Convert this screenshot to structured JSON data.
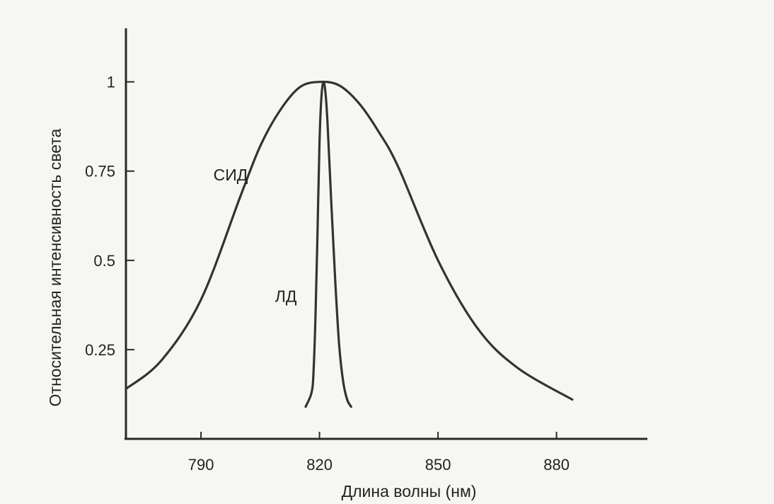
{
  "chart_data": {
    "type": "line",
    "title": "",
    "xlabel": "Длина волны (нм)",
    "ylabel": "Относительная интенсивность света",
    "xlim": [
      771,
      903
    ],
    "ylim": [
      0,
      1.15
    ],
    "x_ticks": [
      790,
      820,
      850,
      880
    ],
    "x_tick_labels": [
      "790",
      "820",
      "850",
      "880"
    ],
    "y_ticks": [
      0.25,
      0.5,
      0.75,
      1
    ],
    "y_tick_labels": [
      "0.25",
      "0.5",
      "0.75",
      "1"
    ],
    "grid": false,
    "legend": "none",
    "series": [
      {
        "name": "СИД",
        "color": "#333333",
        "x": [
          771,
          780,
          790,
          800,
          805,
          810,
          815,
          820,
          825,
          830,
          835,
          840,
          850,
          860,
          870,
          884
        ],
        "y": [
          0.14,
          0.22,
          0.39,
          0.68,
          0.82,
          0.92,
          0.985,
          1.0,
          0.99,
          0.94,
          0.86,
          0.76,
          0.5,
          0.31,
          0.2,
          0.11
        ]
      },
      {
        "name": "ЛД",
        "color": "#333333",
        "x": [
          816.5,
          818,
          818.5,
          819,
          819.5,
          820,
          820.5,
          821,
          821.5,
          822,
          823,
          824,
          825,
          826,
          827,
          828
        ],
        "y": [
          0.09,
          0.13,
          0.19,
          0.35,
          0.58,
          0.83,
          0.96,
          1.0,
          0.97,
          0.89,
          0.66,
          0.44,
          0.26,
          0.16,
          0.11,
          0.09
        ]
      }
    ],
    "annotations": [
      {
        "text": "СИД",
        "x": 797.5,
        "y": 0.74
      },
      {
        "text": "ЛД",
        "x": 811.5,
        "y": 0.4
      }
    ]
  }
}
